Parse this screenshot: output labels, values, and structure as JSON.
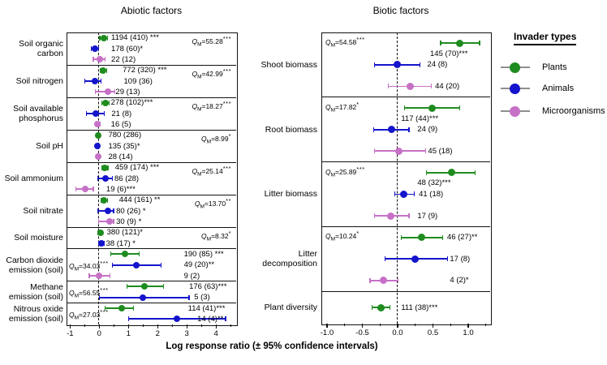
{
  "xlabel": "Log response ratio (± 95% confidence intervals)",
  "legend": {
    "title": "Invader types",
    "items": [
      {
        "label": "Plants",
        "color": "#1f8c1f"
      },
      {
        "label": "Animals",
        "color": "#1414cc"
      },
      {
        "label": "Microorganisms",
        "color": "#c671c6"
      }
    ]
  },
  "chart_data": [
    {
      "type": "forest",
      "title": "Abiotic factors",
      "xlim": [
        -1.12,
        4.69
      ],
      "xticks": [
        -1,
        0,
        1,
        2,
        3,
        4
      ],
      "xtick_labels": [
        "-1",
        "0",
        "1",
        "2",
        "3",
        "4"
      ],
      "zero_line": 0,
      "groups": [
        {
          "label_lines": [
            "Soil organic",
            "carbon"
          ],
          "qm": {
            "value": "55.28",
            "stars": "***",
            "pos": "topright"
          },
          "rows": [
            {
              "invader": "Plants",
              "est": 0.15,
              "lo": 0.02,
              "hi": 0.28,
              "label": "1194 (410) ***",
              "label_x": 0.41
            },
            {
              "invader": "Animals",
              "est": -0.14,
              "lo": -0.27,
              "hi": -0.02,
              "label": "178 (60)*",
              "label_x": 0.41
            },
            {
              "invader": "Microorganisms",
              "est": 0.01,
              "lo": -0.2,
              "hi": 0.21,
              "label": "22 (12)",
              "label_x": 0.41
            }
          ]
        },
        {
          "label_lines": [
            "Soil nitrogen"
          ],
          "qm": {
            "value": "42.99",
            "stars": "***",
            "pos": "topright"
          },
          "rows": [
            {
              "invader": "Plants",
              "est": 0.14,
              "lo": 0.04,
              "hi": 0.25,
              "label": "772 (320) ***",
              "label_x": 0.8
            },
            {
              "invader": "Animals",
              "est": -0.16,
              "lo": -0.5,
              "hi": 0.06,
              "label": "109 (36)",
              "label_x": 0.84
            },
            {
              "invader": "Microorganisms",
              "est": 0.29,
              "lo": -0.14,
              "hi": 0.54,
              "label": "29 (13)",
              "label_x": 0.56
            }
          ]
        },
        {
          "label_lines": [
            "Soil available",
            "phosphorus"
          ],
          "qm": {
            "value": "18.27",
            "stars": "***",
            "pos": "topright"
          },
          "rows": [
            {
              "invader": "Plants",
              "est": 0.21,
              "lo": 0.09,
              "hi": 0.34,
              "label": "278 (102)***",
              "label_x": 0.4
            },
            {
              "invader": "Animals",
              "est": -0.11,
              "lo": -0.43,
              "hi": 0.17,
              "label": "21 (8)",
              "label_x": 0.42
            },
            {
              "invader": "Microorganisms",
              "est": -0.05,
              "lo": -0.13,
              "hi": 0.03,
              "label": "16 (5)",
              "label_x": 0.4
            }
          ]
        },
        {
          "label_lines": [
            "Soil pH"
          ],
          "qm": {
            "value": "8.99",
            "stars": "*",
            "pos": "topright"
          },
          "rows": [
            {
              "invader": "Plants",
              "est": -0.03,
              "lo": -0.08,
              "hi": 0.02,
              "label": "780 (286)",
              "label_x": 0.31
            },
            {
              "invader": "Animals",
              "est": -0.05,
              "lo": -0.11,
              "hi": 0.01,
              "label": "135 (35)*",
              "label_x": 0.31
            },
            {
              "invader": "Microorganisms",
              "est": -0.04,
              "lo": -0.1,
              "hi": 0.02,
              "label": "28 (14)",
              "label_x": 0.31
            }
          ]
        },
        {
          "label_lines": [
            "Soil ammonium"
          ],
          "qm": {
            "value": "25.14",
            "stars": "***",
            "pos": "topright"
          },
          "rows": [
            {
              "invader": "Plants",
              "est": 0.19,
              "lo": 0.08,
              "hi": 0.3,
              "label": "459 (174) ***",
              "label_x": 0.54
            },
            {
              "invader": "Animals",
              "est": 0.21,
              "lo": -0.04,
              "hi": 0.45,
              "label": "86 (28)",
              "label_x": 0.52
            },
            {
              "invader": "Microorganisms",
              "est": -0.48,
              "lo": -0.8,
              "hi": -0.2,
              "label": "19 (6)***",
              "label_x": 0.24
            }
          ]
        },
        {
          "label_lines": [
            "Soil nitrate"
          ],
          "qm": {
            "value": "13.70",
            "stars": "**",
            "pos": "topright"
          },
          "rows": [
            {
              "invader": "Plants",
              "est": 0.17,
              "lo": 0.06,
              "hi": 0.28,
              "label": "444 (161) **",
              "label_x": 0.68
            },
            {
              "invader": "Animals",
              "est": 0.31,
              "lo": -0.05,
              "hi": 0.49,
              "label": "80 (26) *",
              "label_x": 0.58
            },
            {
              "invader": "Microorganisms",
              "est": 0.35,
              "lo": -0.02,
              "hi": 0.49,
              "label": "30 (9) *",
              "label_x": 0.58
            }
          ]
        },
        {
          "label_lines": [
            "Soil moisture"
          ],
          "qm": {
            "value": "8.32",
            "stars": "*",
            "pos": "topright"
          },
          "rows": [
            {
              "invader": "Plants",
              "est": 0.04,
              "lo": -0.04,
              "hi": 0.12,
              "label": "380 (121)*",
              "label_x": 0.26
            },
            {
              "invader": "Animals",
              "est": 0.08,
              "lo": -0.01,
              "hi": 0.17,
              "label": "38 (17) *",
              "label_x": 0.23
            }
          ]
        },
        {
          "label_lines": [
            "Carbon dioxide",
            "emission (soil)"
          ],
          "qm": {
            "value": "34.03",
            "stars": "***",
            "pos": "left"
          },
          "rows": [
            {
              "invader": "Plants",
              "est": 0.88,
              "lo": 0.4,
              "hi": 1.37,
              "label": "190 (85) ***",
              "label_x": 2.9
            },
            {
              "invader": "Animals",
              "est": 1.28,
              "lo": 0.44,
              "hi": 2.11,
              "label": "49 (20)**",
              "label_x": 2.9
            },
            {
              "invader": "Microorganisms",
              "est": 0.0,
              "lo": -0.34,
              "hi": 0.36,
              "label": "9 (2)",
              "label_x": 2.9
            }
          ]
        },
        {
          "label_lines": [
            "Methane",
            "emission (soil)"
          ],
          "qm": {
            "value": "56.55",
            "stars": "***",
            "pos": "left"
          },
          "rows": [
            {
              "invader": "Plants",
              "est": 1.56,
              "lo": 0.94,
              "hi": 2.2,
              "label": "176 (63)***",
              "label_x": 3.08
            },
            {
              "invader": "Animals",
              "est": 1.48,
              "lo": 0.01,
              "hi": 3.08,
              "label": "5 (3)",
              "label_x": 3.25
            }
          ]
        },
        {
          "label_lines": [
            "Nitrous oxide",
            "emission (soil)"
          ],
          "qm": {
            "value": "27.03",
            "stars": "***",
            "pos": "left"
          },
          "rows": [
            {
              "invader": "Plants",
              "est": 0.77,
              "lo": 0.19,
              "hi": 1.17,
              "label": "114 (41)***",
              "label_x": 3.04
            },
            {
              "invader": "Animals",
              "est": 2.65,
              "lo": 1.0,
              "hi": 4.33,
              "label": "14 (4)**",
              "label_x": 3.36
            }
          ]
        }
      ]
    },
    {
      "type": "forest",
      "title": "Biotic factors",
      "xlim": [
        -1.08,
        1.31
      ],
      "xticks": [
        -1.0,
        -0.5,
        0.0,
        0.5,
        1.0
      ],
      "xtick_labels": [
        "-1.0",
        "-0.5",
        "0.0",
        "0.5",
        "1.0"
      ],
      "zero_line": 0,
      "groups": [
        {
          "label_lines": [
            "Shoot biomass"
          ],
          "qm": {
            "value": "54.58",
            "stars": "***",
            "pos": "topleft"
          },
          "rows": [
            {
              "invader": "Plants",
              "est": 0.88,
              "lo": 0.61,
              "hi": 1.16,
              "label": "145 (70)***",
              "label_x": 0.46,
              "label_below": true
            },
            {
              "invader": "Animals",
              "est": -0.01,
              "lo": -0.33,
              "hi": 0.32,
              "label": "24 (8)",
              "label_x": 0.42
            },
            {
              "invader": "Microorganisms",
              "est": 0.18,
              "lo": -0.13,
              "hi": 0.48,
              "label": "44 (20)",
              "label_x": 0.53
            }
          ]
        },
        {
          "label_lines": [
            "Root biomass"
          ],
          "qm": {
            "value": "17.82",
            "stars": "*",
            "pos": "topleft"
          },
          "rows": [
            {
              "invader": "Plants",
              "est": 0.49,
              "lo": 0.1,
              "hi": 0.88,
              "label": "117 (44)***",
              "label_x": 0.05,
              "label_below": true
            },
            {
              "invader": "Animals",
              "est": -0.09,
              "lo": -0.34,
              "hi": 0.16,
              "label": "24 (9)",
              "label_x": 0.28
            },
            {
              "invader": "Microorganisms",
              "est": 0.02,
              "lo": -0.33,
              "hi": 0.4,
              "label": "45 (18)",
              "label_x": 0.43
            }
          ]
        },
        {
          "label_lines": [
            "Litter biomass"
          ],
          "qm": {
            "value": "25.89",
            "stars": "***",
            "pos": "topleft"
          },
          "rows": [
            {
              "invader": "Plants",
              "est": 0.76,
              "lo": 0.41,
              "hi": 1.1,
              "label": "48 (32)***",
              "label_x": 0.28,
              "label_below": true
            },
            {
              "invader": "Animals",
              "est": 0.09,
              "lo": -0.04,
              "hi": 0.24,
              "label": "41 (18)",
              "label_x": 0.3
            },
            {
              "invader": "Microorganisms",
              "est": -0.1,
              "lo": -0.33,
              "hi": 0.16,
              "label": "17 (9)",
              "label_x": 0.28
            }
          ]
        },
        {
          "label_lines": [
            "Litter",
            "decomposition"
          ],
          "qm": {
            "value": "10.24",
            "stars": "*",
            "pos": "topleft"
          },
          "rows": [
            {
              "invader": "Plants",
              "est": 0.34,
              "lo": 0.05,
              "hi": 0.64,
              "label": "46 (27)**",
              "label_x": 0.7
            },
            {
              "invader": "Animals",
              "est": 0.25,
              "lo": -0.18,
              "hi": 0.71,
              "label": "17 (8)",
              "label_x": 0.74
            },
            {
              "invader": "Microorganisms",
              "est": -0.2,
              "lo": -0.39,
              "hi": 0.01,
              "label": "4 (2)*",
              "label_x": 0.74
            }
          ]
        },
        {
          "label_lines": [
            "Plant diversity"
          ],
          "rows": [
            {
              "invader": "Plants",
              "est": -0.23,
              "lo": -0.36,
              "hi": -0.11,
              "label": "111 (38)***",
              "label_x": 0.05
            }
          ]
        }
      ]
    }
  ]
}
